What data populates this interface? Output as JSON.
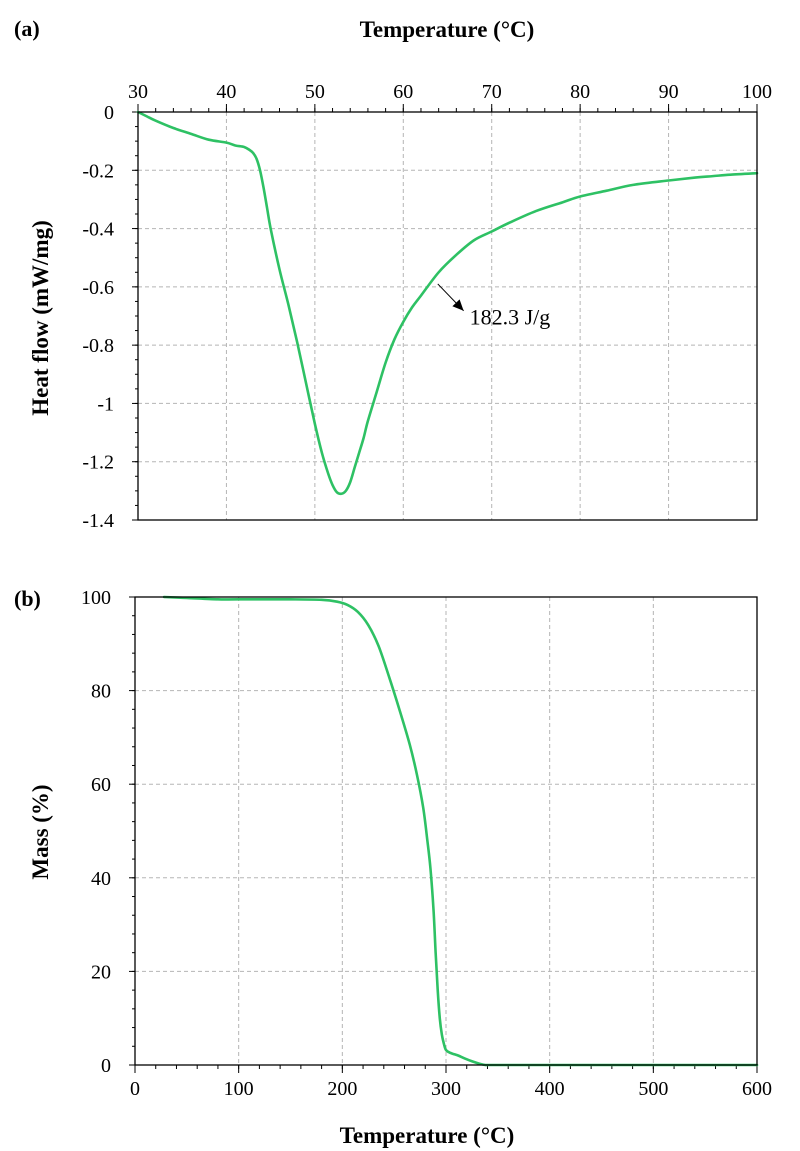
{
  "colors": {
    "curve": "#2ec164",
    "grid": "#b5b5b5",
    "axis": "#000000"
  },
  "chart_data": [
    {
      "panel_label": "(a)",
      "type": "line",
      "xlabel": "Temperature (°C)",
      "ylabel": "Heat flow (mW/mg)",
      "xlim": [
        30,
        100
      ],
      "ylim": [
        -1.4,
        0
      ],
      "x_ticks": [
        30,
        40,
        50,
        60,
        70,
        80,
        90,
        100
      ],
      "y_ticks": [
        0,
        -0.2,
        -0.4,
        -0.6,
        -0.8,
        -1,
        -1.2,
        -1.4
      ],
      "x_axis_position": "top",
      "grid": true,
      "annotation": {
        "text": "182.3 J/g",
        "arrow_to": [
          63.9,
          -0.59
        ],
        "text_at": [
          67.5,
          -0.73
        ]
      },
      "series": [
        {
          "x": [
            30,
            31,
            32,
            34,
            36,
            38,
            40,
            41,
            42,
            42.6,
            43,
            43.4,
            43.8,
            44.2,
            44.6,
            45,
            46,
            47,
            48,
            49,
            50,
            50.8,
            51.5,
            52,
            52.5,
            53,
            53.5,
            54,
            54.5,
            55,
            55.5,
            56,
            57,
            58,
            59,
            60,
            61,
            62,
            64,
            66,
            68,
            70,
            72,
            75,
            78,
            80,
            83,
            86,
            90,
            93,
            95,
            97,
            100
          ],
          "y": [
            0,
            -0.015,
            -0.03,
            -0.055,
            -0.075,
            -0.095,
            -0.105,
            -0.115,
            -0.12,
            -0.13,
            -0.14,
            -0.16,
            -0.2,
            -0.26,
            -0.33,
            -0.4,
            -0.54,
            -0.66,
            -0.79,
            -0.93,
            -1.07,
            -1.17,
            -1.24,
            -1.28,
            -1.305,
            -1.31,
            -1.3,
            -1.27,
            -1.22,
            -1.17,
            -1.12,
            -1.06,
            -0.96,
            -0.86,
            -0.78,
            -0.72,
            -0.67,
            -0.63,
            -0.55,
            -0.49,
            -0.44,
            -0.41,
            -0.38,
            -0.34,
            -0.31,
            -0.29,
            -0.27,
            -0.25,
            -0.235,
            -0.225,
            -0.22,
            -0.215,
            -0.21
          ]
        }
      ]
    },
    {
      "panel_label": "(b)",
      "type": "line",
      "xlabel": "Temperature (°C)",
      "ylabel": "Mass (%)",
      "xlim": [
        0,
        600
      ],
      "ylim": [
        0,
        100
      ],
      "x_ticks": [
        0,
        100,
        200,
        300,
        400,
        500,
        600
      ],
      "y_ticks": [
        0,
        20,
        40,
        60,
        80,
        100
      ],
      "x_axis_position": "bottom",
      "grid": true,
      "series": [
        {
          "x": [
            28,
            50,
            80,
            100,
            150,
            180,
            195,
            205,
            215,
            225,
            235,
            245,
            255,
            265,
            272,
            278,
            282,
            285,
            288,
            290,
            292,
            294,
            296,
            298,
            300,
            304,
            308,
            312,
            318,
            325,
            332,
            338,
            345,
            400,
            500,
            600
          ],
          "y": [
            100,
            99.8,
            99.5,
            99.5,
            99.5,
            99.4,
            99,
            98.3,
            96.8,
            94,
            89.5,
            83,
            76,
            68.5,
            62,
            55,
            48,
            42,
            33,
            24,
            16,
            10,
            6.5,
            4.5,
            3.2,
            2.6,
            2.3,
            2,
            1.4,
            0.8,
            0.3,
            0,
            0,
            0,
            0,
            0
          ]
        }
      ]
    }
  ]
}
